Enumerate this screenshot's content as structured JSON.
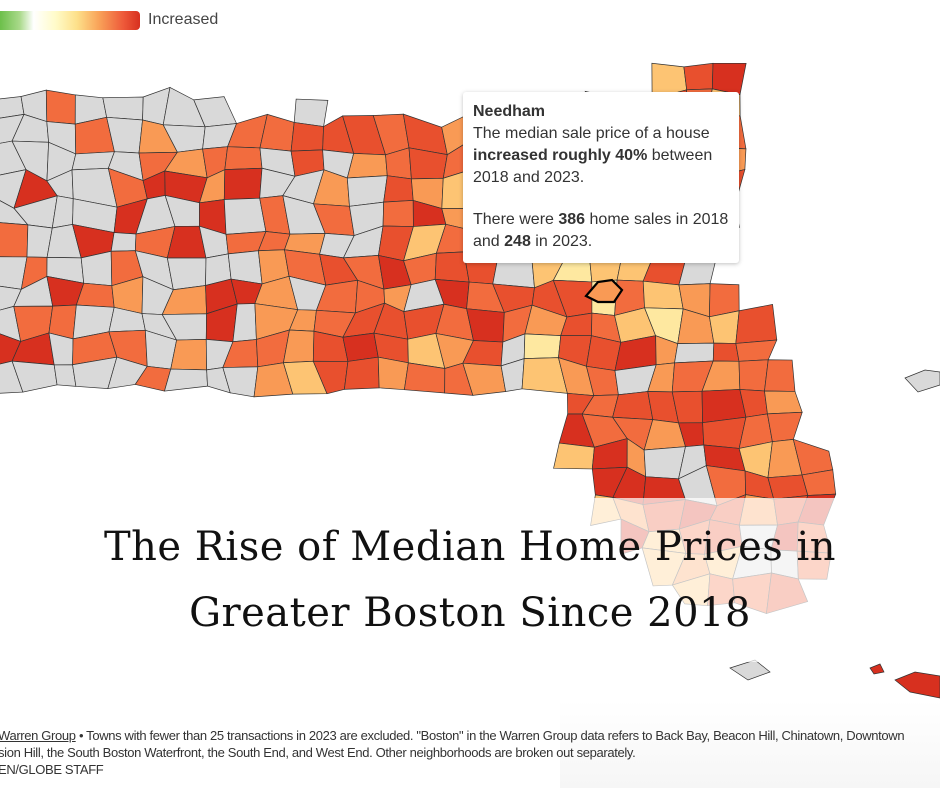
{
  "legend": {
    "label": "Increased",
    "gradient_colors": [
      "#6cbf4a",
      "#ffffff",
      "#fffbc8",
      "#fde08a",
      "#f9a55a",
      "#ee5a3a",
      "#d7301f"
    ]
  },
  "map": {
    "palette": {
      "no_data": "#d9d9d9",
      "high": "#d7301f",
      "mid_high": "#e8502e",
      "mid": "#f26c3e",
      "mid_low": "#f99a55",
      "low": "#fdc473",
      "lowest": "#fee8a0"
    },
    "highlighted_town": "Needham"
  },
  "tooltip": {
    "town": "Needham",
    "line1": "The median sale price of a house",
    "bold1": "increased roughly 40%",
    "line2_rest": " between",
    "line3": "2018 and 2023.",
    "line4_pre": "There were ",
    "sales_2018": "386",
    "line4_post": " home sales in 2018",
    "line5_pre": "and ",
    "sales_2023": "248",
    "line5_post": " in 2023."
  },
  "title": {
    "line1": "The Rise of Median Home Prices in",
    "line2": "Greater Boston Since 2018"
  },
  "footer": {
    "source_link": "Warren Group",
    "line1_rest": " • Towns with fewer than 25 transactions in 2023 are excluded. \"Boston\" in the Warren Group data refers to Back Bay, Beacon Hill, Chinatown, Downtown",
    "line2": "sion Hill, the South Boston Waterfront, the South End, and West End. Other neighborhoods are broken out separately.",
    "line3": "EN/GLOBE STAFF"
  }
}
